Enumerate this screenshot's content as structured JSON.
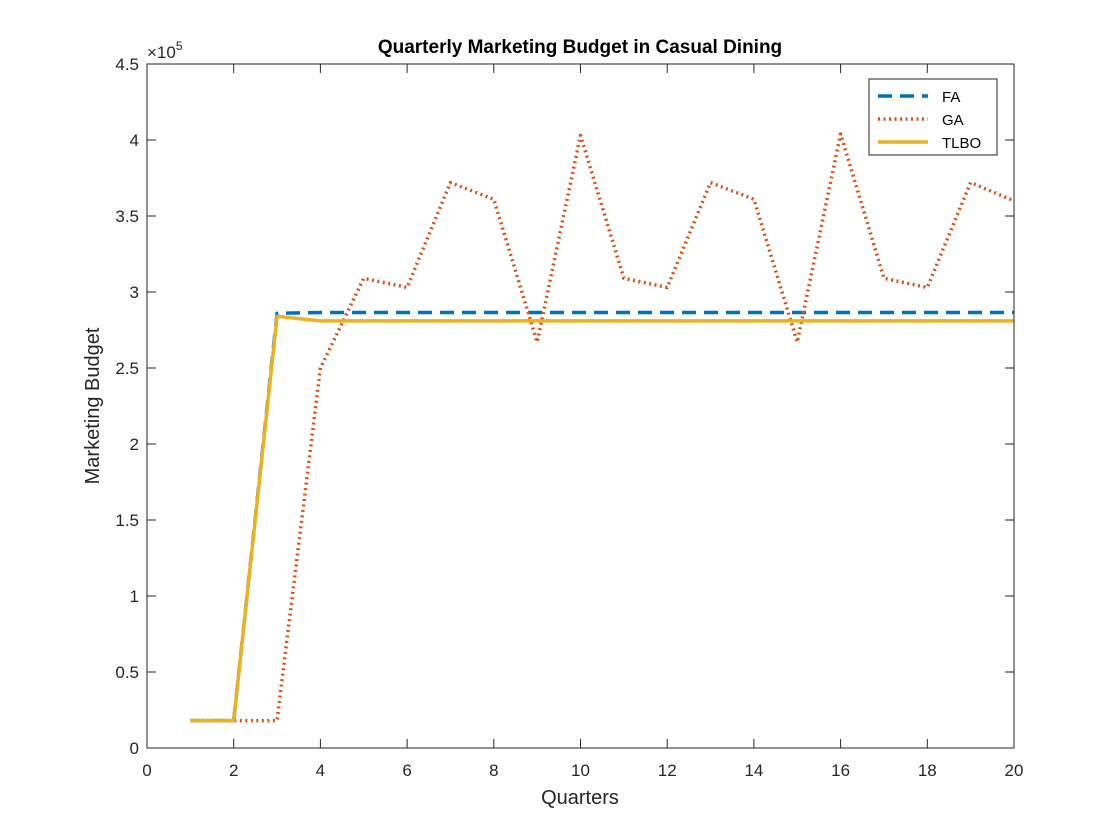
{
  "chart_data": {
    "type": "line",
    "title": "Quarterly Marketing Budget in Casual Dining",
    "xlabel": "Quarters",
    "ylabel": "Marketing Budget",
    "xlim": [
      0,
      20
    ],
    "ylim": [
      0,
      450000
    ],
    "xticks": [
      0,
      2,
      4,
      6,
      8,
      10,
      12,
      14,
      16,
      18,
      20
    ],
    "yticks": [
      0,
      50000,
      100000,
      150000,
      200000,
      250000,
      300000,
      350000,
      400000,
      450000
    ],
    "ytick_labels": [
      "0",
      "0.5",
      "1",
      "1.5",
      "2",
      "2.5",
      "3",
      "3.5",
      "4",
      "4.5"
    ],
    "y_exponent_label": "×10",
    "y_exponent_power": "5",
    "grid": false,
    "legend_position": "top-right",
    "x": [
      1,
      2,
      3,
      4,
      5,
      6,
      7,
      8,
      9,
      10,
      11,
      12,
      13,
      14,
      15,
      16,
      17,
      18,
      19,
      20
    ],
    "series": [
      {
        "name": "FA",
        "color": "#0072BD",
        "style": "dashed",
        "values": [
          18000,
          18000,
          286000,
          286500,
          286500,
          286500,
          286500,
          286500,
          286500,
          286500,
          286500,
          286500,
          286500,
          286500,
          286500,
          286500,
          286500,
          286500,
          286500,
          286500
        ]
      },
      {
        "name": "GA",
        "color": "#D95319",
        "style": "dotted",
        "values": [
          18000,
          18000,
          18000,
          250000,
          309000,
          303000,
          372000,
          361000,
          267000,
          403000,
          309000,
          303000,
          372000,
          361000,
          267000,
          404000,
          309000,
          303000,
          372000,
          360000
        ]
      },
      {
        "name": "TLBO",
        "color": "#EDB120",
        "style": "solid",
        "values": [
          18000,
          18000,
          284000,
          281000,
          281000,
          281000,
          281000,
          281000,
          281000,
          281000,
          281000,
          281000,
          281000,
          281000,
          281000,
          281000,
          281000,
          281000,
          281000,
          281000
        ]
      }
    ]
  }
}
